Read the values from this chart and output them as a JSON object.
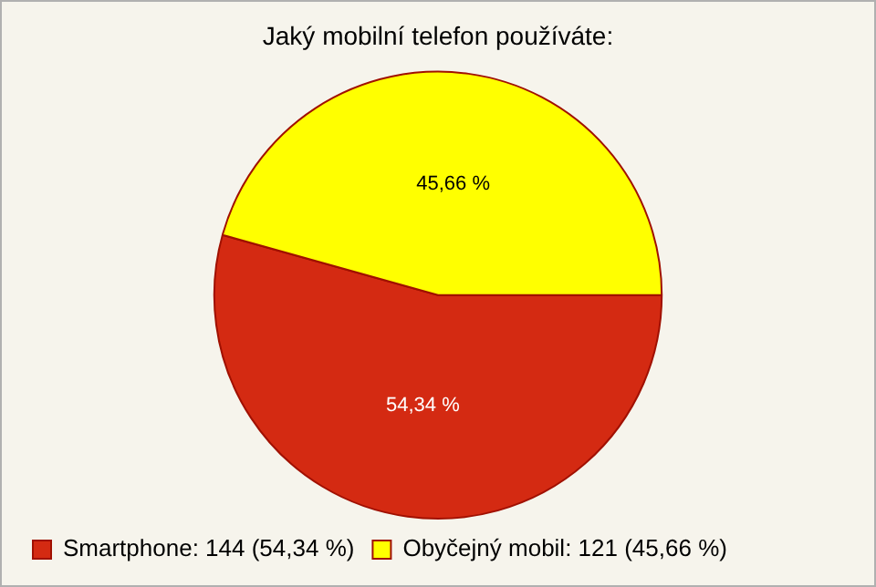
{
  "chart_data": {
    "type": "pie",
    "title": "Jaký mobilní telefon používáte:",
    "categories": [
      "Smartphone: 144 (54,34 %)",
      "Obyčejný mobil: 121 (45,66 %)"
    ],
    "values": [
      54.34,
      45.66
    ],
    "colors": [
      "#d42a12",
      "#ffff00"
    ],
    "value_labels": [
      "54,34 %",
      "45,66 %"
    ],
    "legend": "bottom left"
  }
}
